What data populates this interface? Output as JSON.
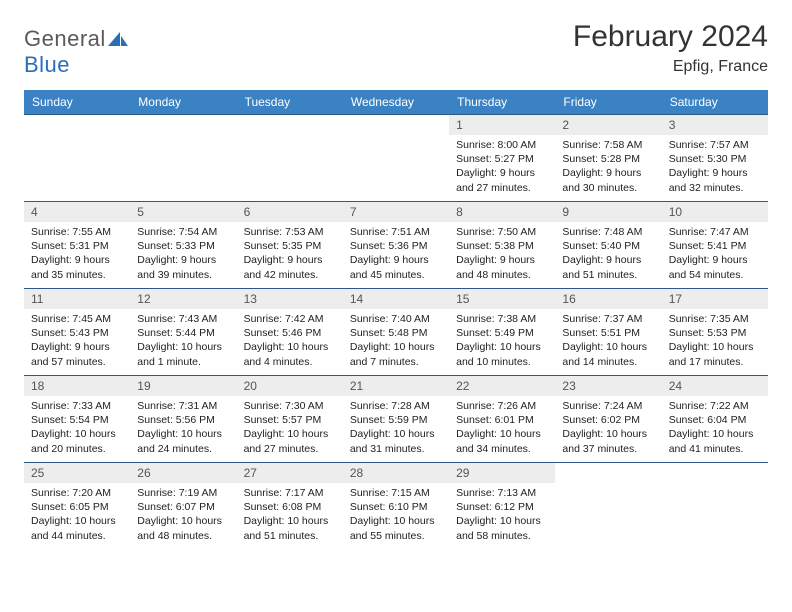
{
  "logo": {
    "text1": "General",
    "text2": "Blue"
  },
  "title": "February 2024",
  "location": "Epfig, France",
  "colors": {
    "header_bg": "#3b82c4",
    "header_text": "#ffffff",
    "row_border": "#2a5a8a",
    "daynum_bg": "#ededed",
    "logo_gray": "#5a5a5a",
    "logo_blue": "#2a6fb5"
  },
  "weekdays": [
    "Sunday",
    "Monday",
    "Tuesday",
    "Wednesday",
    "Thursday",
    "Friday",
    "Saturday"
  ],
  "grid": [
    [
      null,
      null,
      null,
      null,
      {
        "n": "1",
        "sr": "Sunrise: 8:00 AM",
        "ss": "Sunset: 5:27 PM",
        "d1": "Daylight: 9 hours",
        "d2": "and 27 minutes."
      },
      {
        "n": "2",
        "sr": "Sunrise: 7:58 AM",
        "ss": "Sunset: 5:28 PM",
        "d1": "Daylight: 9 hours",
        "d2": "and 30 minutes."
      },
      {
        "n": "3",
        "sr": "Sunrise: 7:57 AM",
        "ss": "Sunset: 5:30 PM",
        "d1": "Daylight: 9 hours",
        "d2": "and 32 minutes."
      }
    ],
    [
      {
        "n": "4",
        "sr": "Sunrise: 7:55 AM",
        "ss": "Sunset: 5:31 PM",
        "d1": "Daylight: 9 hours",
        "d2": "and 35 minutes."
      },
      {
        "n": "5",
        "sr": "Sunrise: 7:54 AM",
        "ss": "Sunset: 5:33 PM",
        "d1": "Daylight: 9 hours",
        "d2": "and 39 minutes."
      },
      {
        "n": "6",
        "sr": "Sunrise: 7:53 AM",
        "ss": "Sunset: 5:35 PM",
        "d1": "Daylight: 9 hours",
        "d2": "and 42 minutes."
      },
      {
        "n": "7",
        "sr": "Sunrise: 7:51 AM",
        "ss": "Sunset: 5:36 PM",
        "d1": "Daylight: 9 hours",
        "d2": "and 45 minutes."
      },
      {
        "n": "8",
        "sr": "Sunrise: 7:50 AM",
        "ss": "Sunset: 5:38 PM",
        "d1": "Daylight: 9 hours",
        "d2": "and 48 minutes."
      },
      {
        "n": "9",
        "sr": "Sunrise: 7:48 AM",
        "ss": "Sunset: 5:40 PM",
        "d1": "Daylight: 9 hours",
        "d2": "and 51 minutes."
      },
      {
        "n": "10",
        "sr": "Sunrise: 7:47 AM",
        "ss": "Sunset: 5:41 PM",
        "d1": "Daylight: 9 hours",
        "d2": "and 54 minutes."
      }
    ],
    [
      {
        "n": "11",
        "sr": "Sunrise: 7:45 AM",
        "ss": "Sunset: 5:43 PM",
        "d1": "Daylight: 9 hours",
        "d2": "and 57 minutes."
      },
      {
        "n": "12",
        "sr": "Sunrise: 7:43 AM",
        "ss": "Sunset: 5:44 PM",
        "d1": "Daylight: 10 hours",
        "d2": "and 1 minute."
      },
      {
        "n": "13",
        "sr": "Sunrise: 7:42 AM",
        "ss": "Sunset: 5:46 PM",
        "d1": "Daylight: 10 hours",
        "d2": "and 4 minutes."
      },
      {
        "n": "14",
        "sr": "Sunrise: 7:40 AM",
        "ss": "Sunset: 5:48 PM",
        "d1": "Daylight: 10 hours",
        "d2": "and 7 minutes."
      },
      {
        "n": "15",
        "sr": "Sunrise: 7:38 AM",
        "ss": "Sunset: 5:49 PM",
        "d1": "Daylight: 10 hours",
        "d2": "and 10 minutes."
      },
      {
        "n": "16",
        "sr": "Sunrise: 7:37 AM",
        "ss": "Sunset: 5:51 PM",
        "d1": "Daylight: 10 hours",
        "d2": "and 14 minutes."
      },
      {
        "n": "17",
        "sr": "Sunrise: 7:35 AM",
        "ss": "Sunset: 5:53 PM",
        "d1": "Daylight: 10 hours",
        "d2": "and 17 minutes."
      }
    ],
    [
      {
        "n": "18",
        "sr": "Sunrise: 7:33 AM",
        "ss": "Sunset: 5:54 PM",
        "d1": "Daylight: 10 hours",
        "d2": "and 20 minutes."
      },
      {
        "n": "19",
        "sr": "Sunrise: 7:31 AM",
        "ss": "Sunset: 5:56 PM",
        "d1": "Daylight: 10 hours",
        "d2": "and 24 minutes."
      },
      {
        "n": "20",
        "sr": "Sunrise: 7:30 AM",
        "ss": "Sunset: 5:57 PM",
        "d1": "Daylight: 10 hours",
        "d2": "and 27 minutes."
      },
      {
        "n": "21",
        "sr": "Sunrise: 7:28 AM",
        "ss": "Sunset: 5:59 PM",
        "d1": "Daylight: 10 hours",
        "d2": "and 31 minutes."
      },
      {
        "n": "22",
        "sr": "Sunrise: 7:26 AM",
        "ss": "Sunset: 6:01 PM",
        "d1": "Daylight: 10 hours",
        "d2": "and 34 minutes."
      },
      {
        "n": "23",
        "sr": "Sunrise: 7:24 AM",
        "ss": "Sunset: 6:02 PM",
        "d1": "Daylight: 10 hours",
        "d2": "and 37 minutes."
      },
      {
        "n": "24",
        "sr": "Sunrise: 7:22 AM",
        "ss": "Sunset: 6:04 PM",
        "d1": "Daylight: 10 hours",
        "d2": "and 41 minutes."
      }
    ],
    [
      {
        "n": "25",
        "sr": "Sunrise: 7:20 AM",
        "ss": "Sunset: 6:05 PM",
        "d1": "Daylight: 10 hours",
        "d2": "and 44 minutes."
      },
      {
        "n": "26",
        "sr": "Sunrise: 7:19 AM",
        "ss": "Sunset: 6:07 PM",
        "d1": "Daylight: 10 hours",
        "d2": "and 48 minutes."
      },
      {
        "n": "27",
        "sr": "Sunrise: 7:17 AM",
        "ss": "Sunset: 6:08 PM",
        "d1": "Daylight: 10 hours",
        "d2": "and 51 minutes."
      },
      {
        "n": "28",
        "sr": "Sunrise: 7:15 AM",
        "ss": "Sunset: 6:10 PM",
        "d1": "Daylight: 10 hours",
        "d2": "and 55 minutes."
      },
      {
        "n": "29",
        "sr": "Sunrise: 7:13 AM",
        "ss": "Sunset: 6:12 PM",
        "d1": "Daylight: 10 hours",
        "d2": "and 58 minutes."
      },
      null,
      null
    ]
  ]
}
